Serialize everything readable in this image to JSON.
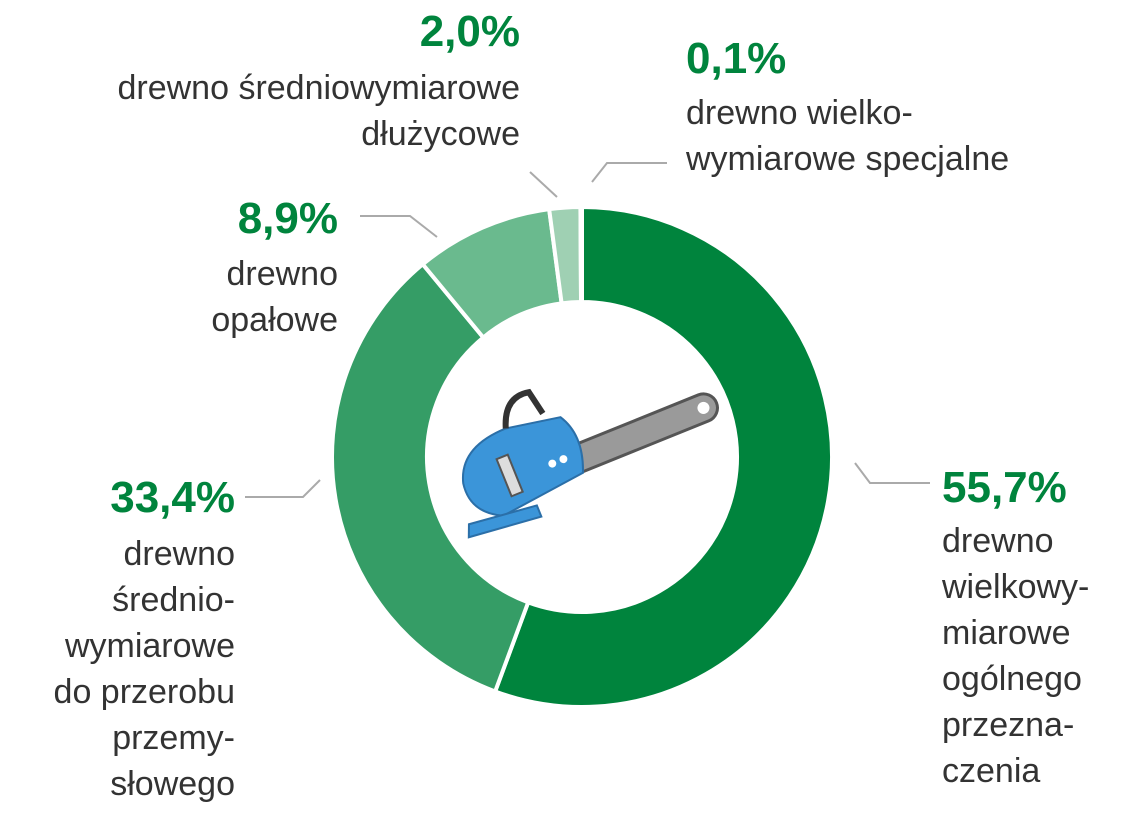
{
  "chart_data": {
    "type": "pie",
    "donut": true,
    "categories": [
      "drewno\nwielkowy-\nmiarowe\nogólnego\nprzezna-\nczenia",
      "drewno\nśrednio-\nwymiarowe\ndo przerobu\nprzemy-\nsłowego",
      "drewno\nopałowe",
      "drewno średniowymiarowe\ndłużycowe",
      "drewno wielko-\nwymiarowe specjalne"
    ],
    "values": [
      55.7,
      33.4,
      8.9,
      2.0,
      0.1
    ],
    "value_labels": [
      "55,7%",
      "33,4%",
      "8,9%",
      "2,0%",
      "0,1%"
    ],
    "colors": [
      "#00843d",
      "#359d66",
      "#6aba8e",
      "#9fd0b3",
      "#c8e4d3"
    ]
  }
}
